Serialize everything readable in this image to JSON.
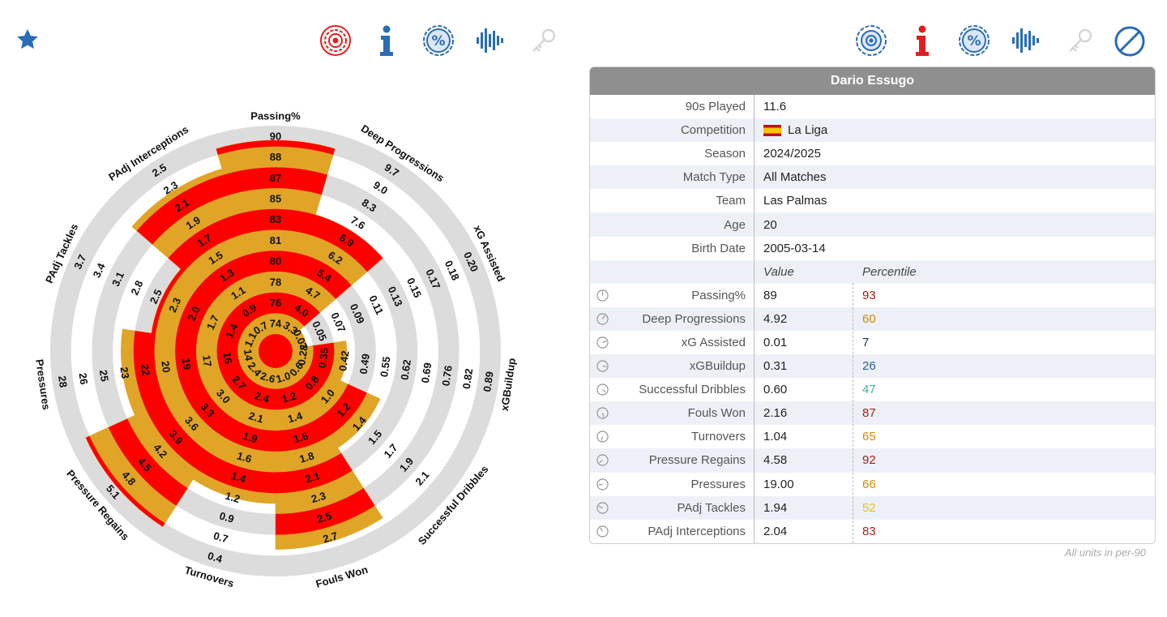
{
  "player": "Dario Essugo",
  "info_rows": [
    {
      "label": "90s Played",
      "value": "11.6"
    },
    {
      "label": "Competition",
      "value": "La Liga"
    },
    {
      "label": "Season",
      "value": "2024/2025"
    },
    {
      "label": "Match Type",
      "value": "All Matches"
    },
    {
      "label": "Team",
      "value": "Las Palmas"
    },
    {
      "label": "Age",
      "value": "20"
    },
    {
      "label": "Birth Date",
      "value": "2005-03-14"
    }
  ],
  "stat_headers": {
    "value": "Value",
    "percentile": "Percentile"
  },
  "stats": [
    {
      "label": "Passing%",
      "value": "89",
      "percentile": "93",
      "color": "#a8201a"
    },
    {
      "label": "Deep Progressions",
      "value": "4.92",
      "percentile": "60",
      "color": "#d08a00"
    },
    {
      "label": "xG Assisted",
      "value": "0.01",
      "percentile": "7",
      "color": "#1b2f5c"
    },
    {
      "label": "xGBuildup",
      "value": "0.31",
      "percentile": "26",
      "color": "#2a5d9a"
    },
    {
      "label": "Successful Dribbles",
      "value": "0.60",
      "percentile": "47",
      "color": "#3fb39a"
    },
    {
      "label": "Fouls Won",
      "value": "2.16",
      "percentile": "87",
      "color": "#a8201a"
    },
    {
      "label": "Turnovers",
      "value": "1.04",
      "percentile": "65",
      "color": "#d08a00"
    },
    {
      "label": "Pressure Regains",
      "value": "4.58",
      "percentile": "92",
      "color": "#a8201a"
    },
    {
      "label": "Pressures",
      "value": "19.00",
      "percentile": "66",
      "color": "#d08a00"
    },
    {
      "label": "PAdj Tackles",
      "value": "1.94",
      "percentile": "52",
      "color": "#e0c020"
    },
    {
      "label": "PAdj Interceptions",
      "value": "2.04",
      "percentile": "83",
      "color": "#a8201a"
    }
  ],
  "footnote": "All units in per-90",
  "colors": {
    "fill": "#e0a526",
    "stripe": "#ff0000",
    "ring": "#dcdcdc",
    "accent_blue": "#2a6db5",
    "accent_red": "#e02020"
  },
  "icons_left": [
    "star-icon",
    "target-icon",
    "info-icon",
    "percent-icon",
    "waveform-icon",
    "key-icon"
  ],
  "icons_right": [
    "target-icon",
    "info-icon",
    "percent-icon",
    "waveform-icon",
    "key-icon",
    "no-entry-icon"
  ],
  "chart_data": {
    "type": "radar",
    "metrics": [
      {
        "name": "Passing%",
        "percentile": 93,
        "ticks": [
          "74",
          "76",
          "78",
          "80",
          "81",
          "83",
          "85",
          "87",
          "88",
          "90"
        ]
      },
      {
        "name": "Deep Progressions",
        "percentile": 60,
        "ticks": [
          "3.3",
          "4.0",
          "4.7",
          "5.4",
          "6.2",
          "6.9",
          "7.6",
          "8.3",
          "9.0",
          "9.7"
        ]
      },
      {
        "name": "xG Assisted",
        "percentile": 7,
        "ticks": [
          "0.03",
          "0.05",
          "0.07",
          "0.09",
          "0.11",
          "0.13",
          "0.15",
          "0.17",
          "0.18",
          "0.20"
        ]
      },
      {
        "name": "xGBuildup",
        "percentile": 26,
        "ticks": [
          "0.28",
          "0.35",
          "0.42",
          "0.49",
          "0.55",
          "0.62",
          "0.69",
          "0.76",
          "0.82",
          "0.89"
        ]
      },
      {
        "name": "Successful Dribbles",
        "percentile": 47,
        "ticks": [
          "0.6",
          "0.8",
          "1.0",
          "1.2",
          "1.4",
          "1.5",
          "1.7",
          "1.9",
          "2.1",
          ""
        ]
      },
      {
        "name": "Fouls Won",
        "percentile": 87,
        "ticks": [
          "1.0",
          "1.2",
          "1.4",
          "1.6",
          "1.8",
          "2.1",
          "2.3",
          "2.5",
          "2.7",
          ""
        ]
      },
      {
        "name": "Turnovers",
        "percentile": 65,
        "ticks": [
          "2.6",
          "2.4",
          "2.1",
          "1.9",
          "1.6",
          "1.4",
          "1.2",
          "0.9",
          "0.7",
          "0.4"
        ]
      },
      {
        "name": "Pressure Regains",
        "percentile": 92,
        "ticks": [
          "2.4",
          "2.7",
          "3.0",
          "3.3",
          "3.6",
          "3.9",
          "4.2",
          "4.5",
          "4.8",
          "5.1"
        ]
      },
      {
        "name": "Pressures",
        "percentile": 66,
        "ticks": [
          "14",
          "16",
          "17",
          "19",
          "20",
          "22",
          "23",
          "25",
          "26",
          "28"
        ]
      },
      {
        "name": "PAdj Tackles",
        "percentile": 52,
        "ticks": [
          "1.1",
          "1.4",
          "1.7",
          "2.0",
          "2.3",
          "2.5",
          "2.8",
          "3.1",
          "3.4",
          "3.7"
        ]
      },
      {
        "name": "PAdj Interceptions",
        "percentile": 83,
        "ticks": [
          "0.7",
          "0.9",
          "1.1",
          "1.3",
          "1.5",
          "1.7",
          "1.9",
          "2.1",
          "2.3",
          "2.5"
        ]
      }
    ]
  }
}
